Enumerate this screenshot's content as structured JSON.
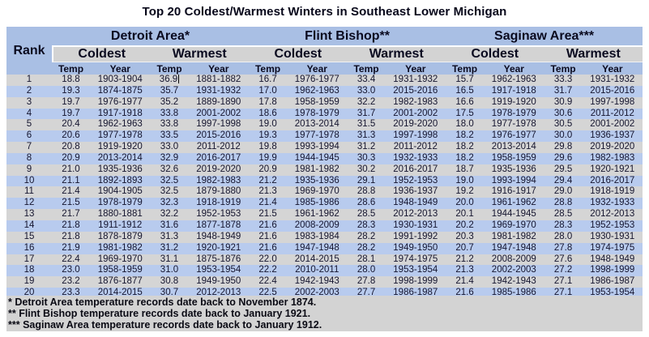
{
  "chart_data": {
    "type": "table",
    "title": "Top 20 Coldest/Warmest Winters in Southeast Lower Michigan",
    "rank_header": "Rank",
    "area_headers": [
      "Detroit Area*",
      "Flint Bishop**",
      "Saginaw Area***"
    ],
    "subgroup_headers": [
      "Coldest",
      "Warmest"
    ],
    "unit_headers": [
      "Temp",
      "Year"
    ],
    "rows": [
      [
        "1",
        "18.8",
        "1903-1904",
        "36.9",
        "1881-1882",
        "16.7",
        "1976-1977",
        "33.4",
        "1931-1932",
        "15.7",
        "1962-1963",
        "33.3",
        "1931-1932"
      ],
      [
        "2",
        "19.3",
        "1874-1875",
        "35.7",
        "1931-1932",
        "17.0",
        "1962-1963",
        "33.0",
        "2015-2016",
        "16.5",
        "1917-1918",
        "31.7",
        "2015-2016"
      ],
      [
        "3",
        "19.7",
        "1976-1977",
        "35.2",
        "1889-1890",
        "17.8",
        "1958-1959",
        "32.2",
        "1982-1983",
        "16.6",
        "1919-1920",
        "30.9",
        "1997-1998"
      ],
      [
        "4",
        "19.7",
        "1917-1918",
        "33.8",
        "2001-2002",
        "18.6",
        "1978-1979",
        "31.7",
        "2001-2002",
        "17.5",
        "1978-1979",
        "30.6",
        "2011-2012"
      ],
      [
        "5",
        "20.4",
        "1962-1963",
        "33.8",
        "1997-1998",
        "19.0",
        "2013-2014",
        "31.5",
        "2019-2020",
        "18.0",
        "1977-1978",
        "30.5",
        "2001-2002"
      ],
      [
        "6",
        "20.6",
        "1977-1978",
        "33.5",
        "2015-2016",
        "19.3",
        "1977-1978",
        "31.3",
        "1997-1998",
        "18.2",
        "1976-1977",
        "30.0",
        "1936-1937"
      ],
      [
        "7",
        "20.8",
        "1919-1920",
        "33.0",
        "2011-2012",
        "19.8",
        "1993-1994",
        "31.2",
        "2011-2012",
        "18.2",
        "2013-2014",
        "29.8",
        "2019-2020"
      ],
      [
        "8",
        "20.9",
        "2013-2014",
        "32.9",
        "2016-2017",
        "19.9",
        "1944-1945",
        "30.3",
        "1932-1933",
        "18.2",
        "1958-1959",
        "29.6",
        "1982-1983"
      ],
      [
        "9",
        "21.0",
        "1935-1936",
        "32.6",
        "2019-2020",
        "20.9",
        "1981-1982",
        "30.2",
        "2016-2017",
        "18.7",
        "1935-1936",
        "29.5",
        "1920-1921"
      ],
      [
        "10",
        "21.1",
        "1892-1893",
        "32.5",
        "1982-1983",
        "21.2",
        "1935-1936",
        "29.1",
        "1952-1953",
        "19.0",
        "1993-1994",
        "29.4",
        "2016-2017"
      ],
      [
        "11",
        "21.4",
        "1904-1905",
        "32.5",
        "1879-1880",
        "21.3",
        "1969-1970",
        "28.8",
        "1936-1937",
        "19.2",
        "1916-1917",
        "29.0",
        "1918-1919"
      ],
      [
        "12",
        "21.5",
        "1978-1979",
        "32.3",
        "1918-1919",
        "21.4",
        "1985-1986",
        "28.6",
        "1948-1949",
        "20.0",
        "1961-1962",
        "28.8",
        "1932-1933"
      ],
      [
        "13",
        "21.7",
        "1880-1881",
        "32.2",
        "1952-1953",
        "21.5",
        "1961-1962",
        "28.5",
        "2012-2013",
        "20.1",
        "1944-1945",
        "28.5",
        "2012-2013"
      ],
      [
        "14",
        "21.8",
        "1911-1912",
        "31.6",
        "1877-1878",
        "21.6",
        "2008-2009",
        "28.3",
        "1930-1931",
        "20.2",
        "1969-1970",
        "28.3",
        "1952-1953"
      ],
      [
        "15",
        "21.8",
        "1878-1879",
        "31.3",
        "1948-1949",
        "21.6",
        "1983-1984",
        "28.2",
        "1991-1992",
        "20.3",
        "1981-1982",
        "28.0",
        "1930-1931"
      ],
      [
        "16",
        "21.9",
        "1981-1982",
        "31.2",
        "1920-1921",
        "21.6",
        "1947-1948",
        "28.2",
        "1949-1950",
        "20.7",
        "1947-1948",
        "27.8",
        "1974-1975"
      ],
      [
        "17",
        "22.4",
        "1969-1970",
        "31.1",
        "1875-1876",
        "22.0",
        "2014-2015",
        "28.1",
        "1974-1975",
        "21.2",
        "2008-2009",
        "27.6",
        "1948-1949"
      ],
      [
        "18",
        "23.0",
        "1958-1959",
        "31.0",
        "1953-1954",
        "22.2",
        "2010-2011",
        "28.0",
        "1953-1954",
        "21.3",
        "2002-2003",
        "27.2",
        "1998-1999"
      ],
      [
        "19",
        "23.2",
        "1876-1877",
        "30.8",
        "1949-1950",
        "22.4",
        "1942-1943",
        "27.8",
        "1998-1999",
        "21.4",
        "1942-1943",
        "27.1",
        "1986-1987"
      ],
      [
        "20",
        "23.3",
        "2014-2015",
        "30.7",
        "2012-2013",
        "22.5",
        "2002-2003",
        "27.7",
        "1986-1987",
        "21.6",
        "1985-1986",
        "27.1",
        "1953-1954"
      ]
    ],
    "footnotes": [
      "* Detroit Area temperature records date back to November 1874.",
      "** Flint Bishop temperature records date back to January 1921.",
      "*** Saginaw Area temperature records date back to January 1912."
    ]
  },
  "cursor": {
    "row_index": 0,
    "cell_index": 3
  },
  "colors": {
    "header_blue": "#a9bfe4",
    "row_blue": "#b8cbee",
    "row_gray": "#d5d5d5",
    "header_gray": "#d3d3d3",
    "footnote_bg": "#d3d3d3"
  }
}
